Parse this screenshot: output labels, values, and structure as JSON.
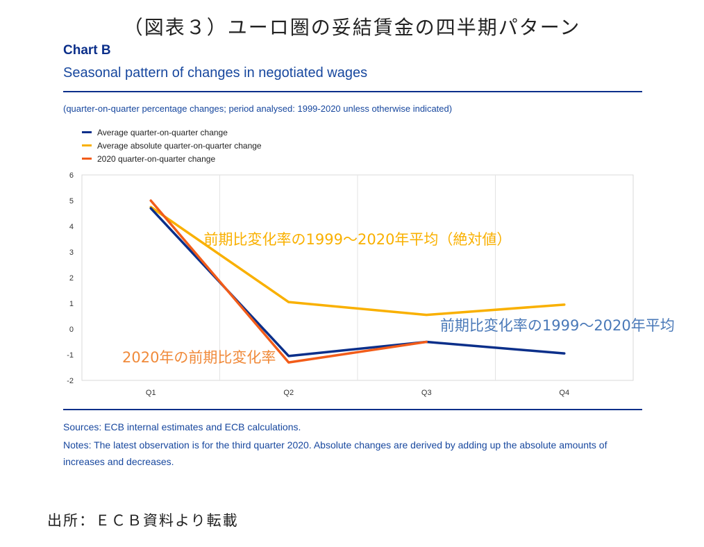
{
  "page_title": "（図表３）ユーロ圏の妥結賃金の四半期パターン",
  "chart_label": "Chart B",
  "chart_subtitle": "Seasonal pattern of changes in negotiated wages",
  "units_note": "(quarter-on-quarter percentage changes; period analysed: 1999-2020 unless otherwise indicated)",
  "colors": {
    "navy": "#0b2f8a",
    "gold": "#f9b000",
    "red": "#f25c19",
    "blue_annot": "#4a79b8",
    "orange_annot": "#f08a3a"
  },
  "chart_data": {
    "type": "line",
    "categories": [
      "Q1",
      "Q2",
      "Q3",
      "Q4"
    ],
    "ylim": [
      -2,
      6
    ],
    "yticks": [
      -2,
      -1,
      0,
      1,
      2,
      3,
      4,
      5,
      6
    ],
    "grid": true,
    "legend_position": "top-left",
    "series": [
      {
        "name": "Average quarter-on-quarter change",
        "color": "#0b2f8a",
        "values": [
          4.7,
          -1.05,
          -0.5,
          -0.95
        ]
      },
      {
        "name": "Average absolute quarter-on-quarter change",
        "color": "#f9b000",
        "values": [
          4.75,
          1.05,
          0.55,
          0.95
        ]
      },
      {
        "name": "2020 quarter-on-quarter change",
        "color": "#f25c19",
        "values": [
          5.0,
          -1.3,
          -0.5,
          null
        ]
      }
    ],
    "annotations": [
      {
        "text": "前期比変化率の1999～2020年平均（絶対値）",
        "color": "#f9b000",
        "anchor_x": 1.5,
        "anchor_y": 3.3
      },
      {
        "text": "前期比変化率の1999～2020年平均",
        "color": "#4a79b8",
        "anchor_x": 2.95,
        "anchor_y": -0.05
      },
      {
        "text": "2020年の前期比変化率",
        "color": "#f08a3a",
        "anchor_x": 0.35,
        "anchor_y": -1.3
      }
    ]
  },
  "sources": "Sources: ECB internal estimates and ECB calculations.",
  "notes": "Notes: The latest observation is for the third quarter 2020. Absolute changes are derived by adding up the absolute amounts of increases and decreases.",
  "source_jp": "出所：ＥＣＢ資料より転載"
}
